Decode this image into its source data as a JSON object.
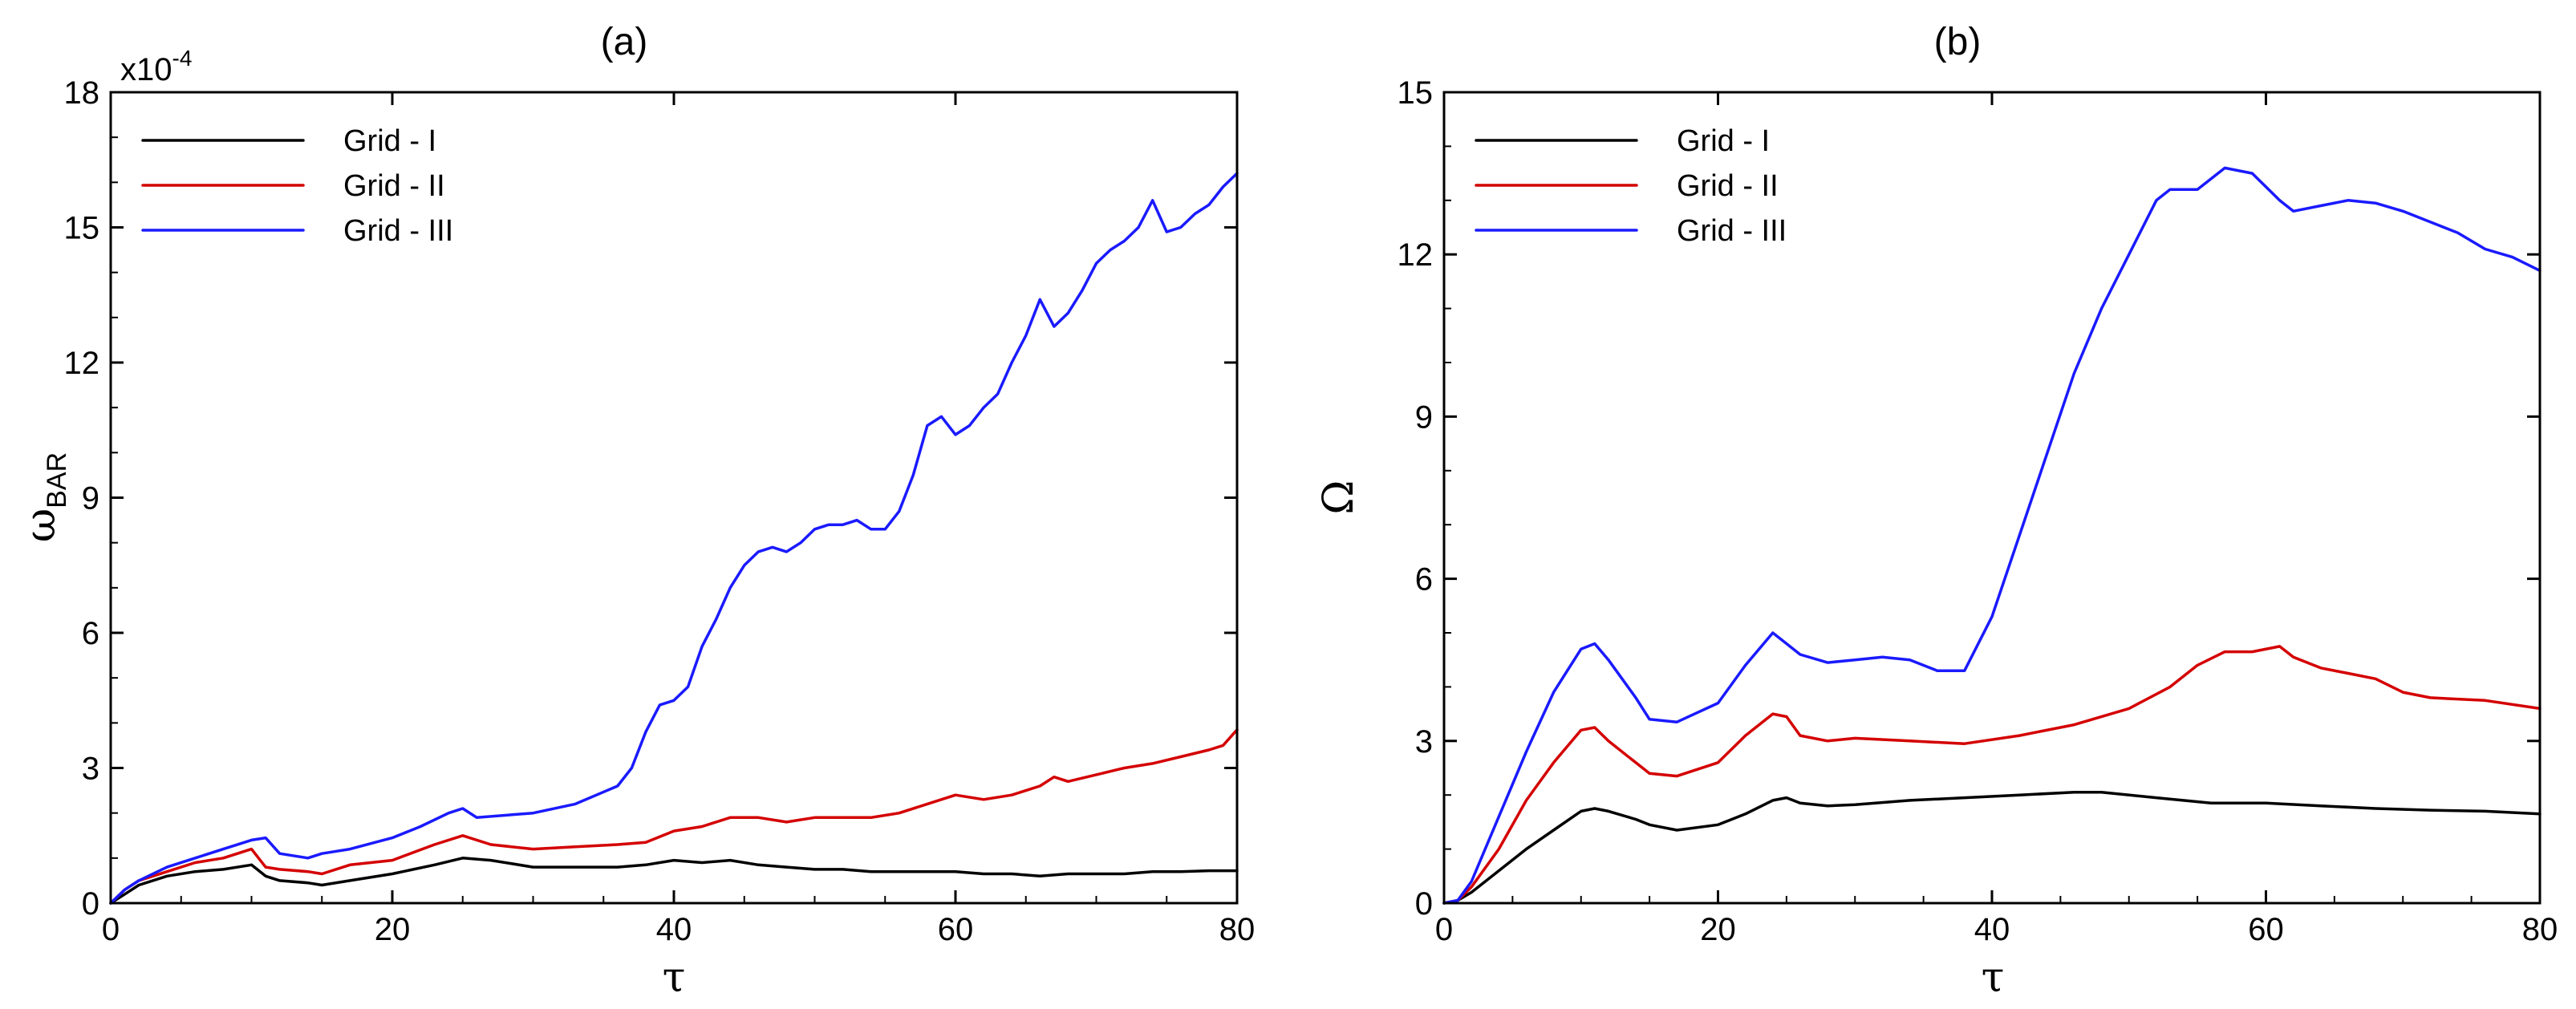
{
  "chart_data": [
    {
      "type": "line",
      "title": "(a)",
      "xlabel": "τ",
      "ylabel_main": "ω",
      "ylabel_sub": "BAR",
      "xlim": [
        0,
        80
      ],
      "ylim": [
        0,
        18
      ],
      "xticks": [
        0,
        20,
        40,
        60,
        80
      ],
      "yticks": [
        0,
        3,
        6,
        9,
        12,
        15,
        18
      ],
      "multiplier_base": "x10",
      "multiplier_exp": "-4",
      "legend_position": "top-left",
      "series": [
        {
          "name": "Grid - I",
          "color": "#000000",
          "x": [
            0,
            1,
            2,
            4,
            6,
            8,
            10,
            11,
            12,
            14,
            15,
            17,
            20,
            23,
            25,
            27,
            30,
            33,
            36,
            38,
            40,
            42,
            44,
            46,
            48,
            50,
            52,
            54,
            56,
            58,
            60,
            62,
            64,
            66,
            68,
            70,
            72,
            74,
            76,
            78,
            80
          ],
          "y": [
            0,
            0.2,
            0.4,
            0.6,
            0.7,
            0.75,
            0.85,
            0.6,
            0.5,
            0.45,
            0.4,
            0.5,
            0.65,
            0.85,
            1.0,
            0.95,
            0.8,
            0.8,
            0.8,
            0.85,
            0.95,
            0.9,
            0.95,
            0.85,
            0.8,
            0.75,
            0.75,
            0.7,
            0.7,
            0.7,
            0.7,
            0.65,
            0.65,
            0.6,
            0.65,
            0.65,
            0.65,
            0.7,
            0.7,
            0.72,
            0.72
          ]
        },
        {
          "name": "Grid - II",
          "color": "#d40000",
          "x": [
            0,
            1,
            2,
            4,
            6,
            8,
            10,
            11,
            12,
            14,
            15,
            17,
            20,
            23,
            25,
            27,
            30,
            33,
            36,
            38,
            40,
            42,
            44,
            46,
            48,
            50,
            52,
            54,
            56,
            58,
            60,
            62,
            64,
            66,
            67,
            68,
            70,
            72,
            74,
            76,
            78,
            79,
            80
          ],
          "y": [
            0,
            0.3,
            0.5,
            0.7,
            0.9,
            1.0,
            1.2,
            0.8,
            0.75,
            0.7,
            0.65,
            0.85,
            0.95,
            1.3,
            1.5,
            1.3,
            1.2,
            1.25,
            1.3,
            1.35,
            1.6,
            1.7,
            1.9,
            1.9,
            1.8,
            1.9,
            1.9,
            1.9,
            2.0,
            2.2,
            2.4,
            2.3,
            2.4,
            2.6,
            2.8,
            2.7,
            2.85,
            3.0,
            3.1,
            3.25,
            3.4,
            3.5,
            3.85
          ]
        },
        {
          "name": "Grid - III",
          "color": "#1a1aff",
          "x": [
            0,
            1,
            2,
            4,
            6,
            8,
            10,
            11,
            12,
            14,
            15,
            17,
            20,
            22,
            24,
            25,
            26,
            28,
            30,
            33,
            36,
            37,
            38,
            39,
            40,
            41,
            42,
            43,
            44,
            45,
            46,
            47,
            48,
            49,
            50,
            51,
            52,
            53,
            54,
            55,
            56,
            57,
            58,
            59,
            60,
            61,
            62,
            63,
            64,
            65,
            66,
            67,
            68,
            69,
            70,
            71,
            72,
            73,
            74,
            75,
            76,
            77,
            78,
            79,
            80
          ],
          "y": [
            0,
            0.3,
            0.5,
            0.8,
            1.0,
            1.2,
            1.4,
            1.45,
            1.1,
            1.0,
            1.1,
            1.2,
            1.45,
            1.7,
            2.0,
            2.1,
            1.9,
            1.95,
            2.0,
            2.2,
            2.6,
            3.0,
            3.8,
            4.4,
            4.5,
            4.8,
            5.7,
            6.3,
            7.0,
            7.5,
            7.8,
            7.9,
            7.8,
            8.0,
            8.3,
            8.4,
            8.4,
            8.5,
            8.3,
            8.3,
            8.7,
            9.5,
            10.6,
            10.8,
            10.4,
            10.6,
            11.0,
            11.3,
            12.0,
            12.6,
            13.4,
            12.8,
            13.1,
            13.6,
            14.2,
            14.5,
            14.7,
            15.0,
            15.6,
            14.9,
            15.0,
            15.3,
            15.5,
            15.9,
            16.2
          ]
        }
      ]
    },
    {
      "type": "line",
      "title": "(b)",
      "xlabel": "τ",
      "ylabel_main": "Ω",
      "ylabel_sub": "",
      "xlim": [
        0,
        80
      ],
      "ylim": [
        0,
        15
      ],
      "xticks": [
        0,
        20,
        40,
        60,
        80
      ],
      "yticks": [
        0,
        3,
        6,
        9,
        12,
        15
      ],
      "multiplier_base": "",
      "multiplier_exp": "",
      "legend_position": "top-left",
      "series": [
        {
          "name": "Grid - I",
          "color": "#000000",
          "x": [
            0,
            1,
            2,
            4,
            6,
            8,
            10,
            11,
            12,
            14,
            15,
            17,
            20,
            22,
            24,
            25,
            26,
            28,
            30,
            34,
            38,
            42,
            46,
            48,
            52,
            56,
            60,
            64,
            68,
            72,
            76,
            80
          ],
          "y": [
            0,
            0.05,
            0.2,
            0.6,
            1.0,
            1.35,
            1.7,
            1.75,
            1.7,
            1.55,
            1.45,
            1.35,
            1.45,
            1.65,
            1.9,
            1.95,
            1.85,
            1.8,
            1.82,
            1.9,
            1.95,
            2.0,
            2.05,
            2.05,
            1.95,
            1.85,
            1.85,
            1.8,
            1.75,
            1.72,
            1.7,
            1.65
          ]
        },
        {
          "name": "Grid - II",
          "color": "#d40000",
          "x": [
            0,
            1,
            2,
            4,
            6,
            8,
            10,
            11,
            12,
            14,
            15,
            17,
            20,
            22,
            24,
            25,
            26,
            28,
            30,
            34,
            38,
            42,
            46,
            50,
            53,
            55,
            57,
            59,
            61,
            62,
            64,
            66,
            68,
            70,
            72,
            76,
            80
          ],
          "y": [
            0,
            0.05,
            0.3,
            1.0,
            1.9,
            2.6,
            3.2,
            3.25,
            3.0,
            2.6,
            2.4,
            2.35,
            2.6,
            3.1,
            3.5,
            3.45,
            3.1,
            3.0,
            3.05,
            3.0,
            2.95,
            3.1,
            3.3,
            3.6,
            4.0,
            4.4,
            4.65,
            4.65,
            4.75,
            4.55,
            4.35,
            4.25,
            4.15,
            3.9,
            3.8,
            3.75,
            3.6
          ]
        },
        {
          "name": "Grid - III",
          "color": "#1a1aff",
          "x": [
            0,
            1,
            2,
            4,
            6,
            8,
            10,
            11,
            12,
            14,
            15,
            17,
            20,
            22,
            24,
            25,
            26,
            28,
            30,
            32,
            34,
            36,
            38,
            40,
            42,
            44,
            46,
            48,
            50,
            52,
            53,
            55,
            57,
            59,
            61,
            62,
            64,
            66,
            68,
            70,
            72,
            74,
            76,
            78,
            80
          ],
          "y": [
            0,
            0.05,
            0.4,
            1.6,
            2.8,
            3.9,
            4.7,
            4.8,
            4.5,
            3.8,
            3.4,
            3.35,
            3.7,
            4.4,
            5.0,
            4.8,
            4.6,
            4.45,
            4.5,
            4.55,
            4.5,
            4.3,
            4.3,
            5.3,
            6.8,
            8.3,
            9.8,
            11.0,
            12.0,
            13.0,
            13.2,
            13.2,
            13.6,
            13.5,
            13.0,
            12.8,
            12.9,
            13.0,
            12.95,
            12.8,
            12.6,
            12.4,
            12.1,
            11.95,
            11.7
          ]
        }
      ]
    }
  ]
}
